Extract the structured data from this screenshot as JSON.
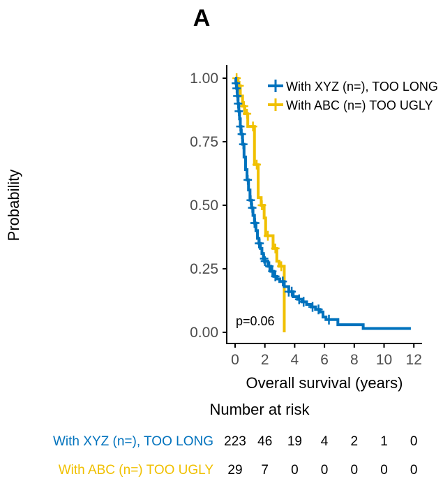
{
  "chart_data": {
    "type": "line",
    "subtype": "kaplan-meier",
    "title": "A",
    "xlabel": "Overall survival (years)",
    "ylabel": "Probability",
    "xlim": [
      -0.3,
      12.5
    ],
    "ylim": [
      0,
      1
    ],
    "x_ticks": [
      "0",
      "2",
      "4",
      "6",
      "8",
      "10",
      "12"
    ],
    "x_tick_values": [
      0,
      2,
      4,
      6,
      8,
      10,
      12
    ],
    "y_ticks": [
      "0.00",
      "0.25",
      "0.50",
      "0.75",
      "1.00"
    ],
    "y_tick_values": [
      0,
      0.25,
      0.5,
      0.75,
      1.0
    ],
    "grid": false,
    "legend_position": "top-right",
    "annotation": "p=0.06",
    "series": [
      {
        "name": "With XYZ (n=), TOO LONG",
        "color": "#0072BD",
        "steps": [
          [
            0,
            1.0
          ],
          [
            0.05,
            0.98
          ],
          [
            0.1,
            0.96
          ],
          [
            0.15,
            0.93
          ],
          [
            0.2,
            0.9
          ],
          [
            0.25,
            0.87
          ],
          [
            0.3,
            0.84
          ],
          [
            0.35,
            0.81
          ],
          [
            0.4,
            0.78
          ],
          [
            0.5,
            0.74
          ],
          [
            0.6,
            0.69
          ],
          [
            0.7,
            0.64
          ],
          [
            0.8,
            0.6
          ],
          [
            0.9,
            0.56
          ],
          [
            1.0,
            0.52
          ],
          [
            1.1,
            0.49
          ],
          [
            1.2,
            0.46
          ],
          [
            1.3,
            0.43
          ],
          [
            1.4,
            0.4
          ],
          [
            1.5,
            0.37
          ],
          [
            1.6,
            0.35
          ],
          [
            1.7,
            0.33
          ],
          [
            1.8,
            0.31
          ],
          [
            1.9,
            0.29
          ],
          [
            2.0,
            0.28
          ],
          [
            2.2,
            0.26
          ],
          [
            2.4,
            0.24
          ],
          [
            2.6,
            0.22
          ],
          [
            2.8,
            0.21
          ],
          [
            3.0,
            0.2
          ],
          [
            3.3,
            0.18
          ],
          [
            3.6,
            0.16
          ],
          [
            3.9,
            0.14
          ],
          [
            4.2,
            0.13
          ],
          [
            4.5,
            0.12
          ],
          [
            4.8,
            0.11
          ],
          [
            5.1,
            0.1
          ],
          [
            5.4,
            0.09
          ],
          [
            5.7,
            0.08
          ],
          [
            5.9,
            0.06
          ],
          [
            6.1,
            0.05
          ],
          [
            6.9,
            0.03
          ],
          [
            8.6,
            0.015
          ],
          [
            11.8,
            0.015
          ]
        ],
        "censor_times": [
          0.05,
          0.1,
          0.15,
          0.2,
          0.25,
          0.35,
          0.45,
          0.55,
          0.85,
          1.05,
          1.15,
          1.3,
          1.35,
          1.6,
          1.65,
          1.95,
          2.0,
          2.3,
          2.5,
          2.7,
          3.2,
          3.6,
          3.8,
          4.3,
          4.6,
          5.2,
          5.6,
          6.3
        ]
      },
      {
        "name": "With ABC (n=) TOO UGLY",
        "color": "#F0C000",
        "steps": [
          [
            0,
            1.0
          ],
          [
            0.2,
            0.97
          ],
          [
            0.35,
            0.93
          ],
          [
            0.5,
            0.89
          ],
          [
            0.65,
            0.86
          ],
          [
            0.85,
            0.81
          ],
          [
            1.3,
            0.66
          ],
          [
            1.55,
            0.53
          ],
          [
            1.75,
            0.5
          ],
          [
            1.95,
            0.45
          ],
          [
            2.05,
            0.38
          ],
          [
            2.55,
            0.33
          ],
          [
            2.8,
            0.28
          ],
          [
            2.95,
            0.26
          ],
          [
            3.3,
            0.0
          ]
        ],
        "censor_times": [
          0.1,
          0.3,
          0.6,
          0.8,
          1.2,
          1.45,
          1.8,
          2.2,
          2.7,
          3.1
        ]
      }
    ],
    "risk_table": {
      "title": "Number at risk",
      "times": [
        0,
        2,
        4,
        6,
        8,
        10,
        12
      ],
      "rows": [
        {
          "label": "With XYZ (n=), TOO LONG",
          "color": "#0072BD",
          "values": [
            "223",
            "46",
            "19",
            "4",
            "2",
            "1",
            "0"
          ]
        },
        {
          "label": "With ABC (n=) TOO UGLY",
          "color": "#F0C000",
          "values": [
            "29",
            "7",
            "0",
            "0",
            "0",
            "0",
            "0"
          ]
        }
      ]
    }
  }
}
